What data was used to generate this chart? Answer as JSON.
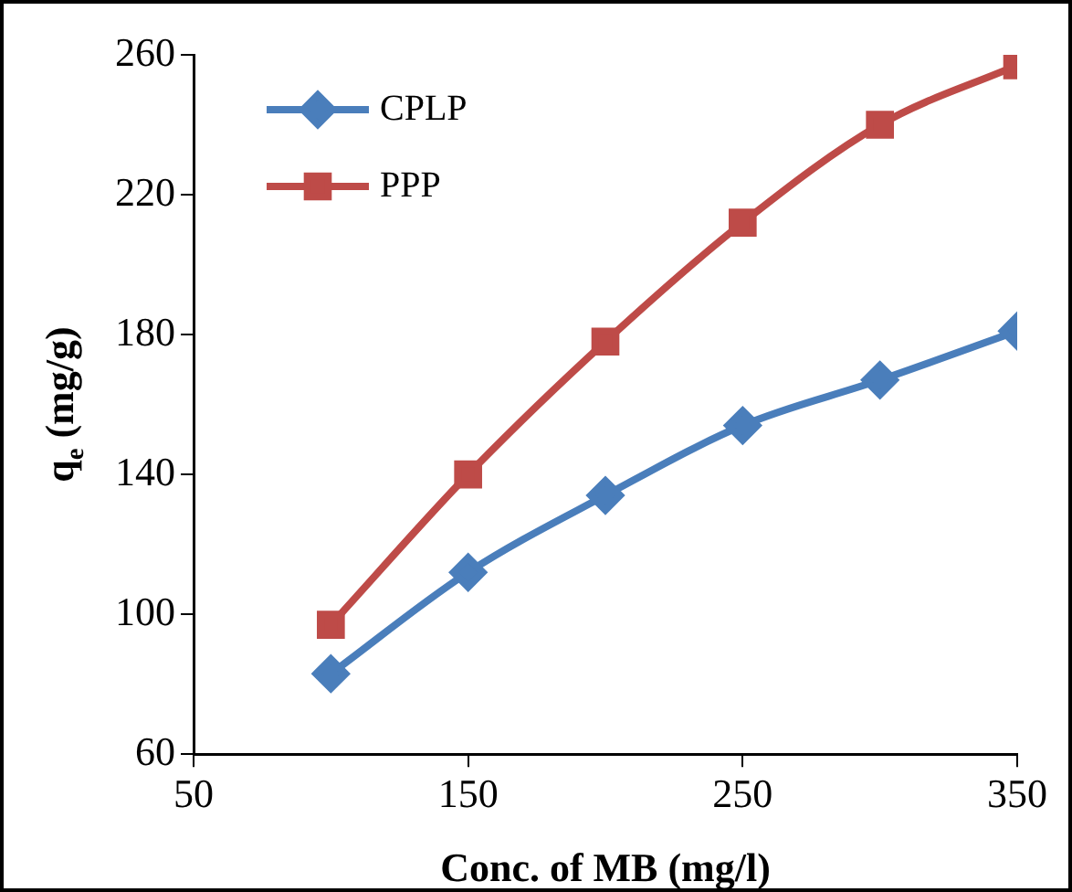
{
  "chart_data": {
    "type": "line",
    "xlabel": "Conc. of MB (mg/l)",
    "ylabel": "q$_{e}$ (mg/g)",
    "x": [
      100,
      150,
      200,
      250,
      300,
      350
    ],
    "series": [
      {
        "name": "CPLP",
        "color": "#4a7ebb",
        "marker": "diamond",
        "values": [
          83,
          112,
          134,
          154,
          167,
          181
        ]
      },
      {
        "name": "PPP",
        "color": "#be4b48",
        "marker": "square",
        "values": [
          97,
          140,
          178,
          212,
          240,
          257
        ]
      }
    ],
    "xlim": [
      50,
      350
    ],
    "xticks": [
      50,
      150,
      250,
      350
    ],
    "ylim": [
      60,
      260
    ],
    "yticks": [
      60,
      100,
      140,
      180,
      220,
      260
    ],
    "grid": false,
    "legend": "top left",
    "line_style": "solid"
  }
}
